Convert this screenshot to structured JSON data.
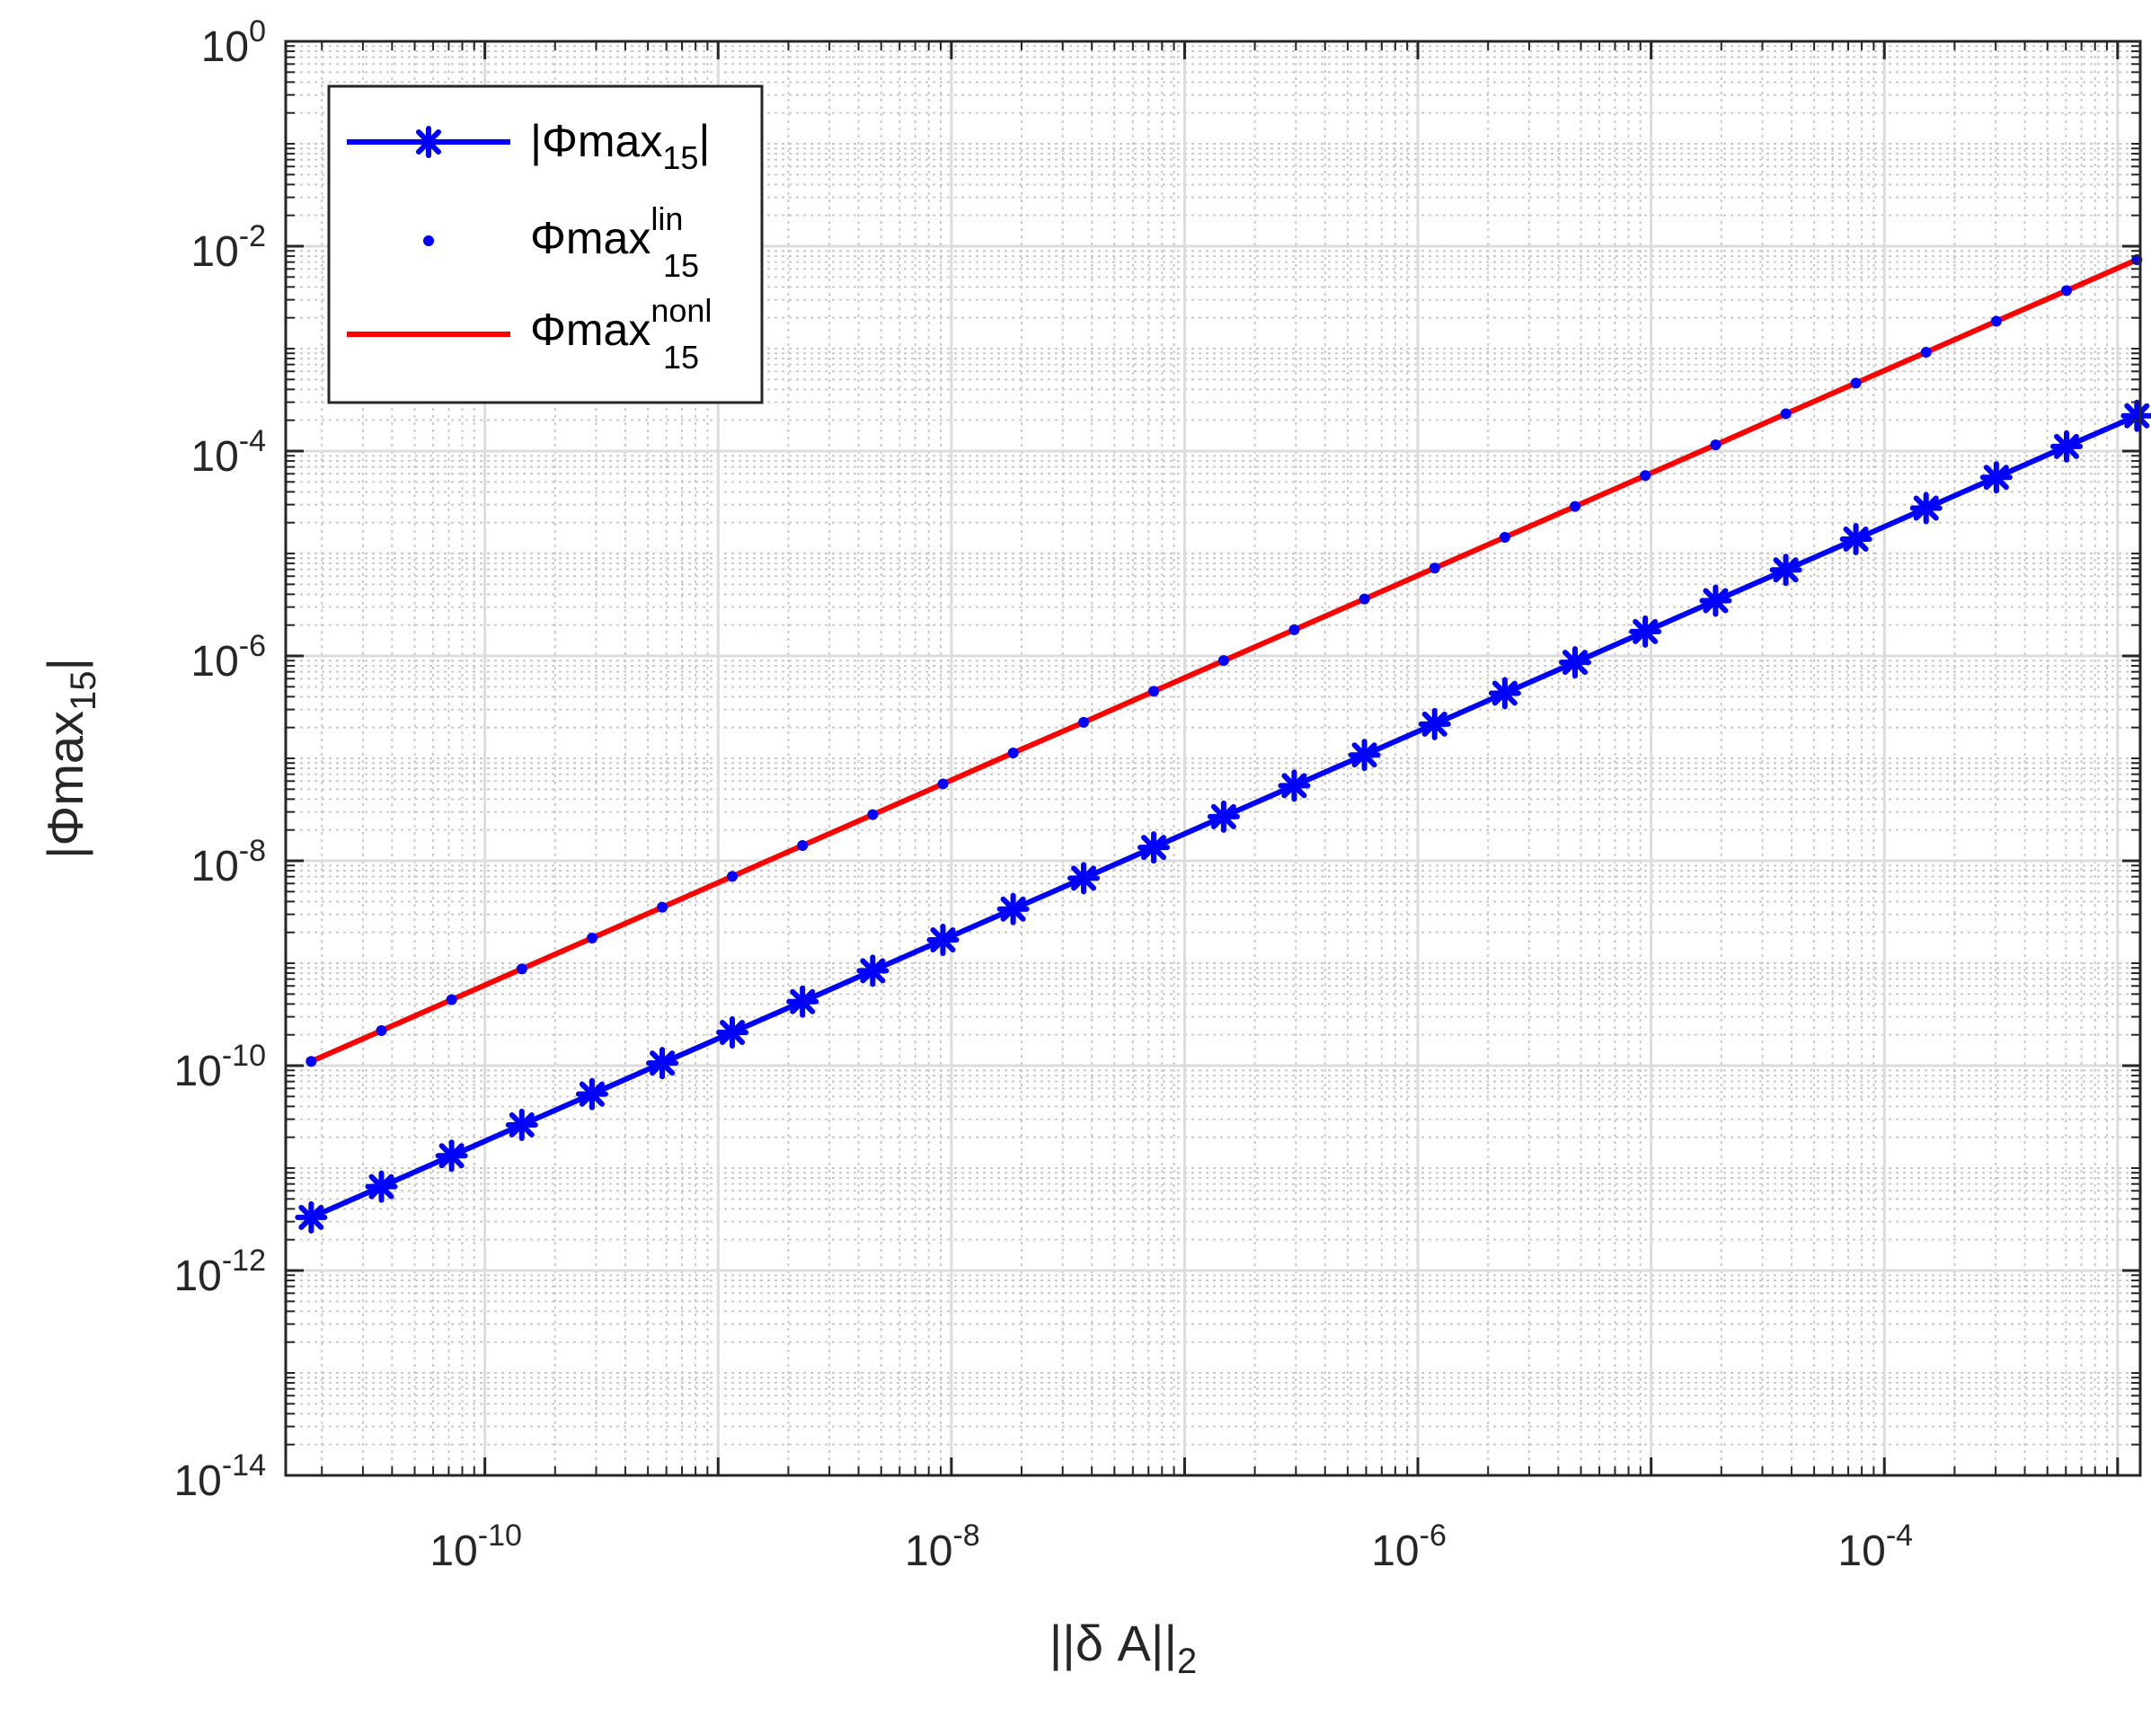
{
  "chart_data": {
    "type": "line",
    "xscale": "log",
    "yscale": "log",
    "xlim": [
      1.4e-11,
      0.00125
    ],
    "ylim": [
      1e-14,
      1
    ],
    "grid": true,
    "minor_grid": true,
    "legend_position": "top-left",
    "xlabel": {
      "main": "||δ A||",
      "sub": "2"
    },
    "ylabel": {
      "main": "|Φmax",
      "sub": "15",
      "close": "|"
    },
    "x_ticks": [
      {
        "base": "10",
        "exp": "-10",
        "value": 1e-10
      },
      {
        "base": "10",
        "exp": "-8",
        "value": 1e-08
      },
      {
        "base": "10",
        "exp": "-6",
        "value": 1e-06
      },
      {
        "base": "10",
        "exp": "-4",
        "value": 0.0001
      }
    ],
    "y_ticks": [
      {
        "base": "10",
        "exp": "0",
        "value": 1
      },
      {
        "base": "10",
        "exp": "-2",
        "value": 0.01
      },
      {
        "base": "10",
        "exp": "-4",
        "value": 0.0001
      },
      {
        "base": "10",
        "exp": "-6",
        "value": 1e-06
      },
      {
        "base": "10",
        "exp": "-8",
        "value": 1e-08
      },
      {
        "base": "10",
        "exp": "-10",
        "value": 1e-10
      },
      {
        "base": "10",
        "exp": "-12",
        "value": 1e-12
      },
      {
        "base": "10",
        "exp": "-14",
        "value": 1e-14
      }
    ],
    "x": [
      1.8e-11,
      3.6e-11,
      7.2e-11,
      1.44e-10,
      2.88e-10,
      5.76e-10,
      1.15e-09,
      2.3e-09,
      4.6e-09,
      9.2e-09,
      1.84e-08,
      3.69e-08,
      7.37e-08,
      1.47e-07,
      2.95e-07,
      5.9e-07,
      1.18e-06,
      2.36e-06,
      4.72e-06,
      9.44e-06,
      1.89e-05,
      3.78e-05,
      7.55e-05,
      0.000151,
      0.000302,
      0.000604,
      0.00121
    ],
    "series": [
      {
        "name": {
          "main": "|Φmax",
          "sub": "15",
          "close": "|"
        },
        "color": "#0000ff",
        "style": "line-asterisk",
        "values": [
          3.3e-12,
          6.6e-12,
          1.32e-11,
          2.64e-11,
          5.28e-11,
          1.06e-10,
          2.11e-10,
          4.22e-10,
          8.45e-10,
          1.69e-09,
          3.38e-09,
          6.76e-09,
          1.35e-08,
          2.7e-08,
          5.41e-08,
          1.08e-07,
          2.16e-07,
          4.33e-07,
          8.65e-07,
          1.73e-06,
          3.46e-06,
          6.92e-06,
          1.38e-05,
          2.77e-05,
          5.54e-05,
          0.000111,
          0.000221
        ]
      },
      {
        "name": {
          "main": "Φmax",
          "sub": "15",
          "sup": "lin"
        },
        "color": "#0000ff",
        "style": "dot",
        "values": [
          1.1e-10,
          2.2e-10,
          4.4e-10,
          8.8e-10,
          1.76e-09,
          3.52e-09,
          7.04e-09,
          1.41e-08,
          2.82e-08,
          5.63e-08,
          1.13e-07,
          2.25e-07,
          4.51e-07,
          9.01e-07,
          1.8e-06,
          3.6e-06,
          7.21e-06,
          1.44e-05,
          2.88e-05,
          5.77e-05,
          0.000115,
          0.000231,
          0.000461,
          0.000923,
          0.00185,
          0.00369,
          0.00738
        ]
      },
      {
        "name": {
          "main": "Φmax",
          "sub": "15",
          "sup": "nonl"
        },
        "color": "#ff0000",
        "style": "line",
        "values": [
          1.1e-10,
          2.2e-10,
          4.4e-10,
          8.8e-10,
          1.76e-09,
          3.52e-09,
          7.04e-09,
          1.41e-08,
          2.82e-08,
          5.63e-08,
          1.13e-07,
          2.25e-07,
          4.51e-07,
          9.01e-07,
          1.8e-06,
          3.6e-06,
          7.21e-06,
          1.44e-05,
          2.88e-05,
          5.77e-05,
          0.000115,
          0.000231,
          0.000461,
          0.000923,
          0.00185,
          0.00369,
          0.00738
        ]
      }
    ]
  }
}
